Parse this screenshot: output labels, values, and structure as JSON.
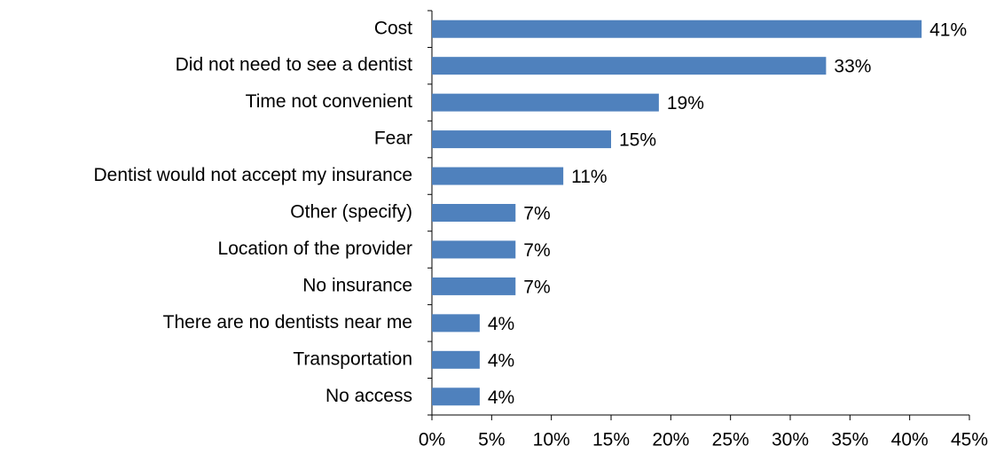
{
  "chart_data": {
    "type": "bar",
    "orientation": "horizontal",
    "categories": [
      "Cost",
      "Did not need to see a dentist",
      "Time not convenient",
      "Fear",
      "Dentist would not accept my insurance",
      "Other (specify)",
      "Location of the provider",
      "No insurance",
      "There are no dentists near me",
      "Transportation",
      "No access"
    ],
    "values": [
      41,
      33,
      19,
      15,
      11,
      7,
      7,
      7,
      4,
      4,
      4
    ],
    "value_labels": [
      "41%",
      "33%",
      "19%",
      "15%",
      "11%",
      "7%",
      "7%",
      "7%",
      "4%",
      "4%",
      "4%"
    ],
    "color": "#4f81bd",
    "xlim": [
      0,
      45
    ],
    "xticks": [
      {
        "value": 0,
        "label": "0%"
      },
      {
        "value": 5,
        "label": "5%"
      },
      {
        "value": 10,
        "label": "10%"
      },
      {
        "value": 15,
        "label": "15%"
      },
      {
        "value": 20,
        "label": "20%"
      },
      {
        "value": 25,
        "label": "25%"
      },
      {
        "value": 30,
        "label": "30%"
      },
      {
        "value": 35,
        "label": "35%"
      },
      {
        "value": 40,
        "label": "40%"
      },
      {
        "value": 45,
        "label": "45%"
      }
    ],
    "grid": false
  }
}
